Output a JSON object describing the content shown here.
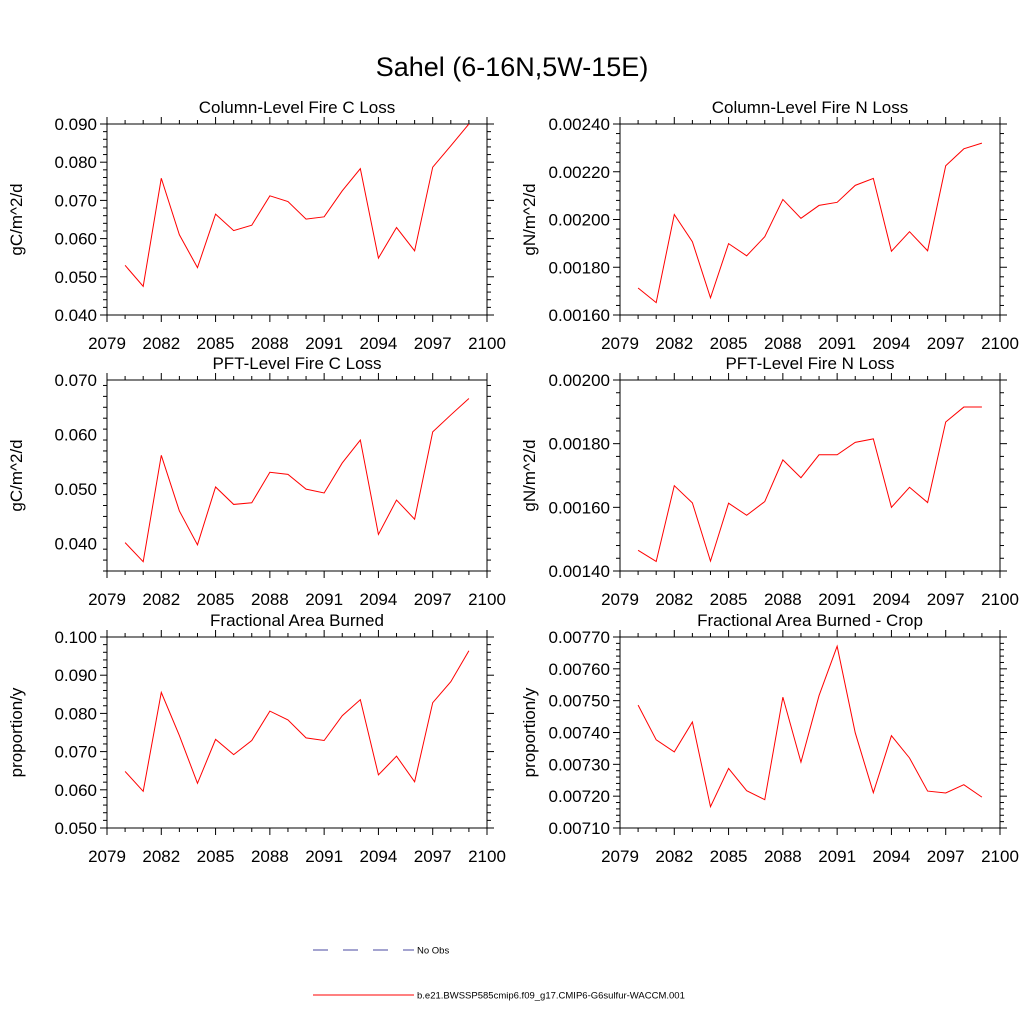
{
  "figure": {
    "title": "Sahel (6-16N,5W-15E)"
  },
  "legend": {
    "entries": [
      {
        "label": "No Obs",
        "color": "#4a4aa0",
        "style": "dashed"
      },
      {
        "label": "b.e21.BWSSP585cmip6.f09_g17.CMIP6-G6sulfur-WACCM.001",
        "color": "#ff0000",
        "style": "solid"
      }
    ]
  },
  "chart_data": [
    {
      "type": "line",
      "title": "Column-Level Fire C Loss",
      "ylabel": "gC/m^2/d",
      "xlim": [
        2079,
        2100
      ],
      "ylim": [
        0.04,
        0.09
      ],
      "xticks": [
        "2079",
        "2082",
        "2085",
        "2088",
        "2091",
        "2094",
        "2097",
        "2100"
      ],
      "yticks": [
        "0.040",
        "0.050",
        "0.060",
        "0.070",
        "0.080",
        "0.090"
      ],
      "x": [
        2080,
        2081,
        2082,
        2083,
        2084,
        2085,
        2086,
        2087,
        2088,
        2089,
        2090,
        2091,
        2092,
        2093,
        2094,
        2095,
        2096,
        2097,
        2098,
        2099
      ],
      "series": [
        {
          "name": "b.e21.BWSSP585cmip6.f09_g17.CMIP6-G6sulfur-WACCM.001",
          "color": "#ff0000",
          "values": [
            0.053,
            0.0475,
            0.0758,
            0.061,
            0.0524,
            0.0664,
            0.0621,
            0.0635,
            0.0712,
            0.0697,
            0.0651,
            0.0657,
            0.0725,
            0.0783,
            0.0549,
            0.0629,
            0.0568,
            0.0787,
            0.0843,
            0.09
          ]
        }
      ]
    },
    {
      "type": "line",
      "title": "Column-Level Fire N Loss",
      "ylabel": "gN/m^2/d",
      "xlim": [
        2079,
        2100
      ],
      "ylim": [
        0.0016,
        0.0024
      ],
      "xticks": [
        "2079",
        "2082",
        "2085",
        "2088",
        "2091",
        "2094",
        "2097",
        "2100"
      ],
      "yticks": [
        "0.00160",
        "0.00180",
        "0.00200",
        "0.00220",
        "0.00240"
      ],
      "x": [
        2080,
        2081,
        2082,
        2083,
        2084,
        2085,
        2086,
        2087,
        2088,
        2089,
        2090,
        2091,
        2092,
        2093,
        2094,
        2095,
        2096,
        2097,
        2098,
        2099
      ],
      "series": [
        {
          "name": "b.e21.BWSSP585cmip6.f09_g17.CMIP6-G6sulfur-WACCM.001",
          "color": "#ff0000",
          "values": [
            0.001713,
            0.001652,
            0.002021,
            0.001907,
            0.001672,
            0.001899,
            0.001848,
            0.001928,
            0.002084,
            0.002005,
            0.002059,
            0.002072,
            0.002143,
            0.002172,
            0.001867,
            0.001949,
            0.001869,
            0.002225,
            0.002296,
            0.00232
          ]
        }
      ]
    },
    {
      "type": "line",
      "title": "PFT-Level Fire C Loss",
      "ylabel": "gC/m^2/d",
      "xlim": [
        2079,
        2100
      ],
      "ylim": [
        0.035,
        0.07
      ],
      "xticks": [
        "2079",
        "2082",
        "2085",
        "2088",
        "2091",
        "2094",
        "2097",
        "2100"
      ],
      "yticks": [
        "0.040",
        "0.050",
        "0.060",
        "0.070"
      ],
      "x": [
        2080,
        2081,
        2082,
        2083,
        2084,
        2085,
        2086,
        2087,
        2088,
        2089,
        2090,
        2091,
        2092,
        2093,
        2094,
        2095,
        2096,
        2097,
        2098,
        2099
      ],
      "series": [
        {
          "name": "b.e21.BWSSP585cmip6.f09_g17.CMIP6-G6sulfur-WACCM.001",
          "color": "#ff0000",
          "values": [
            0.0402,
            0.0367,
            0.0562,
            0.046,
            0.0398,
            0.0504,
            0.0472,
            0.0475,
            0.0531,
            0.0527,
            0.05,
            0.0493,
            0.0548,
            0.059,
            0.0417,
            0.048,
            0.0445,
            0.0605,
            0.0636,
            0.0666
          ]
        }
      ]
    },
    {
      "type": "line",
      "title": "PFT-Level Fire N Loss",
      "ylabel": "gN/m^2/d",
      "xlim": [
        2079,
        2100
      ],
      "ylim": [
        0.0014,
        0.002
      ],
      "xticks": [
        "2079",
        "2082",
        "2085",
        "2088",
        "2091",
        "2094",
        "2097",
        "2100"
      ],
      "yticks": [
        "0.00140",
        "0.00160",
        "0.00180",
        "0.00200"
      ],
      "x": [
        2080,
        2081,
        2082,
        2083,
        2084,
        2085,
        2086,
        2087,
        2088,
        2089,
        2090,
        2091,
        2092,
        2093,
        2094,
        2095,
        2096,
        2097,
        2098,
        2099
      ],
      "series": [
        {
          "name": "b.e21.BWSSP585cmip6.f09_g17.CMIP6-G6sulfur-WACCM.001",
          "color": "#ff0000",
          "values": [
            0.001465,
            0.00143,
            0.001668,
            0.001614,
            0.001431,
            0.001613,
            0.001575,
            0.001618,
            0.001749,
            0.001693,
            0.001765,
            0.001765,
            0.001804,
            0.001815,
            0.0016,
            0.001663,
            0.001615,
            0.001868,
            0.001915,
            0.001915
          ]
        }
      ]
    },
    {
      "type": "line",
      "title": "Fractional Area Burned",
      "ylabel": "proportion/y",
      "xlim": [
        2079,
        2100
      ],
      "ylim": [
        0.05,
        0.1
      ],
      "xticks": [
        "2079",
        "2082",
        "2085",
        "2088",
        "2091",
        "2094",
        "2097",
        "2100"
      ],
      "yticks": [
        "0.050",
        "0.060",
        "0.070",
        "0.080",
        "0.090",
        "0.100"
      ],
      "x": [
        2080,
        2081,
        2082,
        2083,
        2084,
        2085,
        2086,
        2087,
        2088,
        2089,
        2090,
        2091,
        2092,
        2093,
        2094,
        2095,
        2096,
        2097,
        2098,
        2099
      ],
      "series": [
        {
          "name": "b.e21.BWSSP585cmip6.f09_g17.CMIP6-G6sulfur-WACCM.001",
          "color": "#ff0000",
          "values": [
            0.0648,
            0.0596,
            0.0855,
            0.0742,
            0.0617,
            0.0732,
            0.0692,
            0.0729,
            0.0806,
            0.0783,
            0.0736,
            0.0729,
            0.0794,
            0.0836,
            0.0639,
            0.0688,
            0.0621,
            0.0828,
            0.0883,
            0.0964
          ]
        }
      ]
    },
    {
      "type": "line",
      "title": "Fractional Area Burned - Crop",
      "ylabel": "proportion/y",
      "xlim": [
        2079,
        2100
      ],
      "ylim": [
        0.0071,
        0.0077
      ],
      "xticks": [
        "2079",
        "2082",
        "2085",
        "2088",
        "2091",
        "2094",
        "2097",
        "2100"
      ],
      "yticks": [
        "0.00710",
        "0.00720",
        "0.00730",
        "0.00740",
        "0.00750",
        "0.00760",
        "0.00770"
      ],
      "x": [
        2080,
        2081,
        2082,
        2083,
        2084,
        2085,
        2086,
        2087,
        2088,
        2089,
        2090,
        2091,
        2092,
        2093,
        2094,
        2095,
        2096,
        2097,
        2098,
        2099
      ],
      "series": [
        {
          "name": "b.e21.BWSSP585cmip6.f09_g17.CMIP6-G6sulfur-WACCM.001",
          "color": "#ff0000",
          "values": [
            0.007486,
            0.007377,
            0.007339,
            0.007433,
            0.007167,
            0.007287,
            0.007217,
            0.007189,
            0.007511,
            0.007307,
            0.007516,
            0.007671,
            0.007399,
            0.007211,
            0.00739,
            0.00732,
            0.007216,
            0.00721,
            0.007236,
            0.007197
          ]
        }
      ]
    }
  ]
}
